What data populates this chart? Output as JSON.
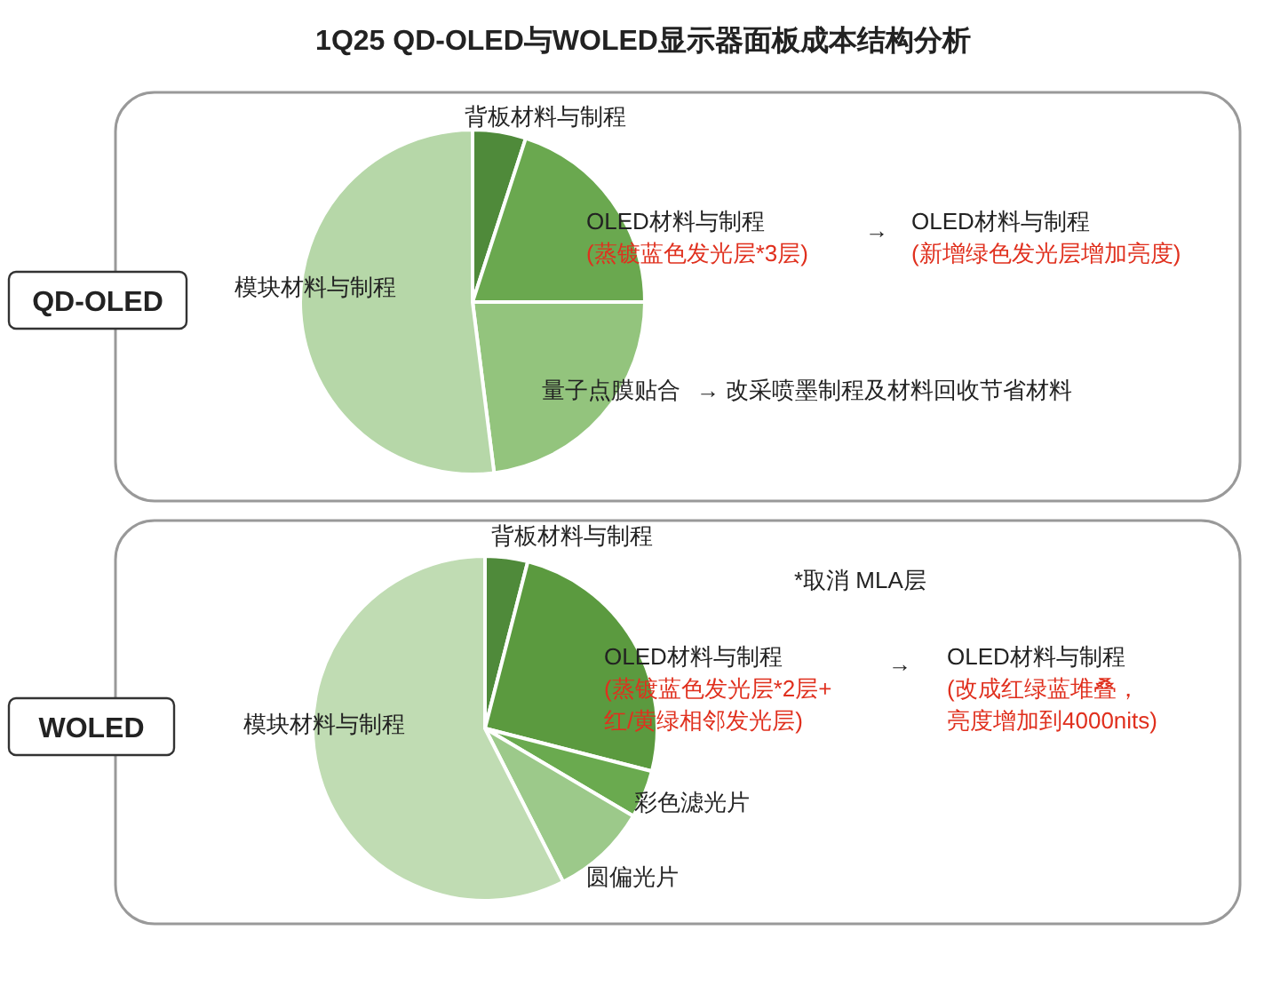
{
  "chart_data": [
    {
      "type": "pie",
      "title": "1Q25 QD-OLED与WOLED显示器面板成本结构分析",
      "subtitle": "QD-OLED",
      "categories": [
        "背板材料与制程",
        "OLED材料与制程",
        "量子点膜贴合",
        "模块材料与制程"
      ],
      "values": [
        5,
        20,
        23,
        52
      ],
      "colors": [
        "#4f8a3a",
        "#6aa84f",
        "#93c47d",
        "#b6d7a8"
      ],
      "annotations": [
        "(蒸镀蓝色发光层*3层)",
        "→",
        "OLED材料与制程",
        "(新增绿色发光层增加亮度)",
        "→ 改采喷墨制程及材料回收节省材料"
      ]
    },
    {
      "type": "pie",
      "subtitle": "WOLED",
      "categories": [
        "背板材料与制程",
        "OLED材料与制程",
        "彩色滤光片",
        "圆偏光片",
        "模块材料与制程"
      ],
      "values": [
        4,
        25,
        4.5,
        9,
        57.5
      ],
      "colors": [
        "#4f8a3a",
        "#5b9a3f",
        "#6aaa4f",
        "#9cc98a",
        "#c0dcb3"
      ],
      "annotations": [
        "*取消 MLA层",
        "(蒸镀蓝色发光层*2层+",
        "红/黄绿相邻发光层)",
        "→",
        "OLED材料与制程",
        "(改成红绿蓝堆叠，",
        "亮度增加到4000nits)"
      ]
    }
  ]
}
